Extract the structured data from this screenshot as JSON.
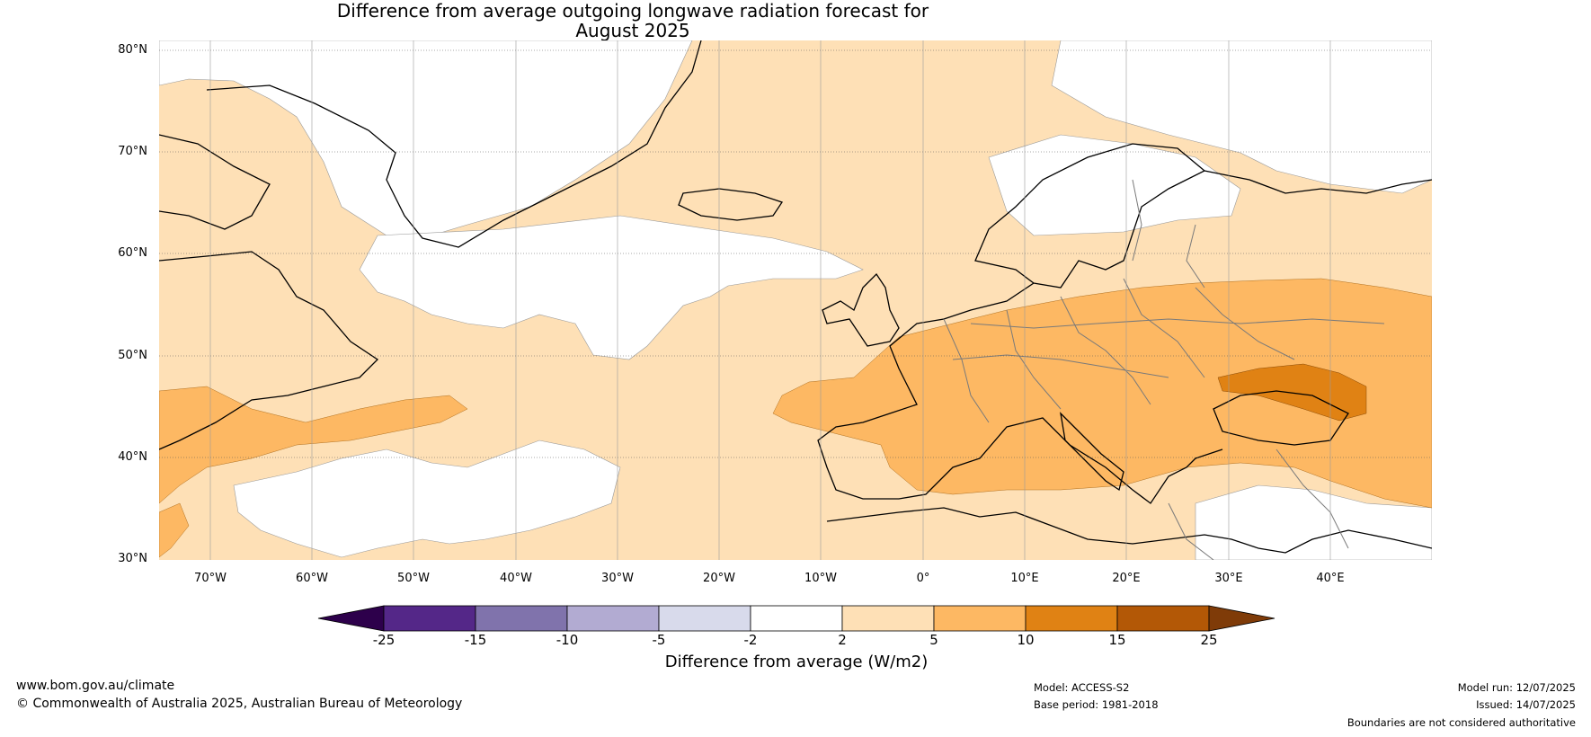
{
  "title": {
    "line1": "Difference from average outgoing longwave radiation forecast for",
    "line2": "August 2025"
  },
  "map": {
    "lat_labels": [
      "80°N",
      "70°N",
      "60°N",
      "50°N",
      "40°N",
      "30°N"
    ],
    "lon_labels": [
      "70°W",
      "60°W",
      "50°W",
      "40°W",
      "30°W",
      "20°W",
      "10°W",
      "0°",
      "10°E",
      "20°E",
      "30°E",
      "40°E"
    ],
    "lat_range": [
      30,
      81
    ],
    "lon_range": [
      -75,
      50
    ],
    "land_color": "#ffffff",
    "coast_color": "#000000",
    "border_color": "#7a7a7a",
    "grid_style": "dotted"
  },
  "colorbar": {
    "title": "Difference from average (W/m2)",
    "tick_labels": [
      "-25",
      "-15",
      "-10",
      "-5",
      "-2",
      "2",
      "5",
      "10",
      "15",
      "25"
    ],
    "bins": [
      {
        "from": null,
        "to": -25,
        "color": "#2d004b"
      },
      {
        "from": -25,
        "to": -15,
        "color": "#542788"
      },
      {
        "from": -15,
        "to": -10,
        "color": "#8073ac"
      },
      {
        "from": -10,
        "to": -5,
        "color": "#b2abd2"
      },
      {
        "from": -5,
        "to": -2,
        "color": "#d8daeb"
      },
      {
        "from": -2,
        "to": 2,
        "color": "#ffffff"
      },
      {
        "from": 2,
        "to": 5,
        "color": "#fee0b6"
      },
      {
        "from": 5,
        "to": 10,
        "color": "#fdb863"
      },
      {
        "from": 10,
        "to": 15,
        "color": "#e08214"
      },
      {
        "from": 15,
        "to": 25,
        "color": "#b35806"
      },
      {
        "from": 25,
        "to": null,
        "color": "#7f3b08"
      }
    ]
  },
  "footer": {
    "website": "www.bom.gov.au/climate",
    "copyright": "© Commonwealth of Australia 2025, Australian Bureau of Meteorology",
    "model": "Model: ACCESS-S2",
    "base_period": "Base period: 1981-2018",
    "model_run": "Model run: 12/07/2025",
    "issued": "Issued: 14/07/2025",
    "boundaries_note": "Boundaries are not considered authoritative"
  }
}
